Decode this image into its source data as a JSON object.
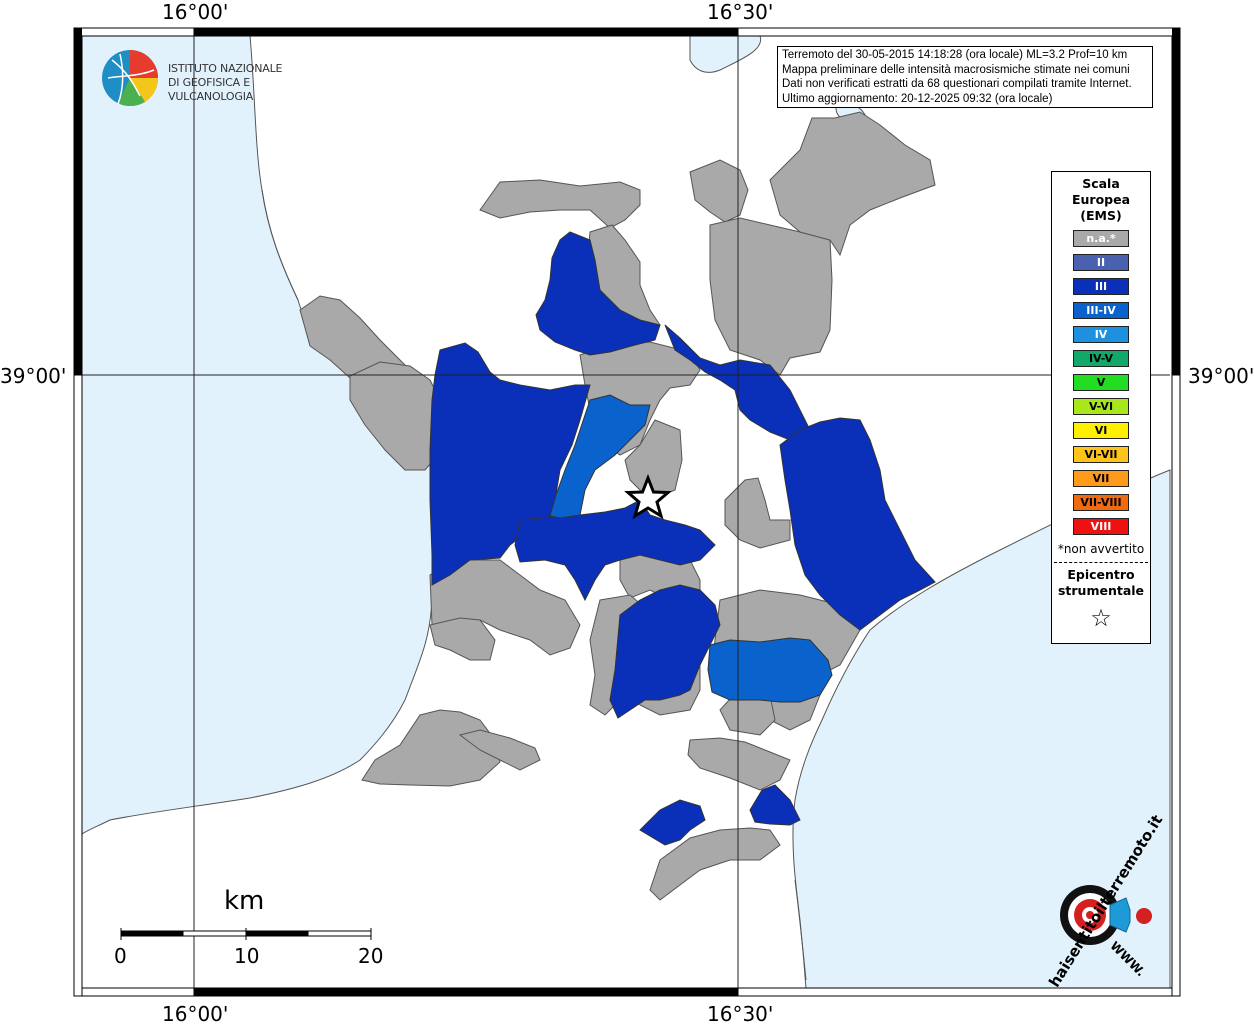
{
  "map": {
    "title": "Terremoto del 30-05-2015 14:18:28 (ora locale) ML=3.2 Prof=10 km",
    "info_lines": [
      "Terremoto del 30-05-2015 14:18:28 (ora locale) ML=3.2 Prof=10 km",
      "Mappa preliminare delle intensità macrosismiche stimate nei comuni",
      "Dati non verificati estratti da 68 questionari compilati tramite Internet.",
      "Ultimo aggiornamento: 20-12-2025 09:32 (ora locale)"
    ],
    "grid_labels": {
      "top_left": "16°00'",
      "top_right": "16°30'",
      "bottom_left": "16°00'",
      "bottom_right": "16°30'",
      "left": "39°00'",
      "right": "39°00'"
    },
    "colors": {
      "sea": "#e2f2fc",
      "land": "#ffffff",
      "coast": "#555555",
      "na": "#a9a9a9",
      "III": "#0a2fb8",
      "III-IV": "#0a62cc",
      "frame_black": "#000000"
    }
  },
  "logo": {
    "line1": "ISTITUTO NAZIONALE",
    "line2": "DI GEOFISICA E VULCANOLOGIA",
    "icon": "ingv-globe-icon"
  },
  "legend": {
    "title_lines": [
      "Scala",
      "Europea",
      "(EMS)"
    ],
    "items": [
      {
        "label": "n.a.*",
        "color": "#a9a9a9",
        "text_color": "#ffffff"
      },
      {
        "label": "II",
        "color": "#4a61b0",
        "text_color": "#ffffff"
      },
      {
        "label": "III",
        "color": "#0a2fb8",
        "text_color": "#ffffff"
      },
      {
        "label": "III-IV",
        "color": "#0a62cc",
        "text_color": "#ffffff"
      },
      {
        "label": "IV",
        "color": "#1e90e0",
        "text_color": "#ffffff"
      },
      {
        "label": "IV-V",
        "color": "#11a86a",
        "text_color": "#000000"
      },
      {
        "label": "V",
        "color": "#22dd22",
        "text_color": "#000000"
      },
      {
        "label": "V-VI",
        "color": "#a8e81a",
        "text_color": "#000000"
      },
      {
        "label": "VI",
        "color": "#fff000",
        "text_color": "#000000"
      },
      {
        "label": "VI-VII",
        "color": "#ffc31a",
        "text_color": "#000000"
      },
      {
        "label": "VII",
        "color": "#ff9a1a",
        "text_color": "#000000"
      },
      {
        "label": "VII-VIII",
        "color": "#f26a10",
        "text_color": "#000000"
      },
      {
        "label": "VIII",
        "color": "#ee1111",
        "text_color": "#ffffff"
      }
    ],
    "note": "*non avvertito",
    "epicenter_lines": [
      "Epicentro",
      "strumentale"
    ],
    "epicenter_symbol": "☆"
  },
  "scale_bar": {
    "unit": "km",
    "ticks": [
      "0",
      "10",
      "20"
    ]
  },
  "haisentito": {
    "text": "haisentitoilterremoto.it",
    "url_text": "WWW.",
    "icon": "haisentito-target-icon"
  }
}
